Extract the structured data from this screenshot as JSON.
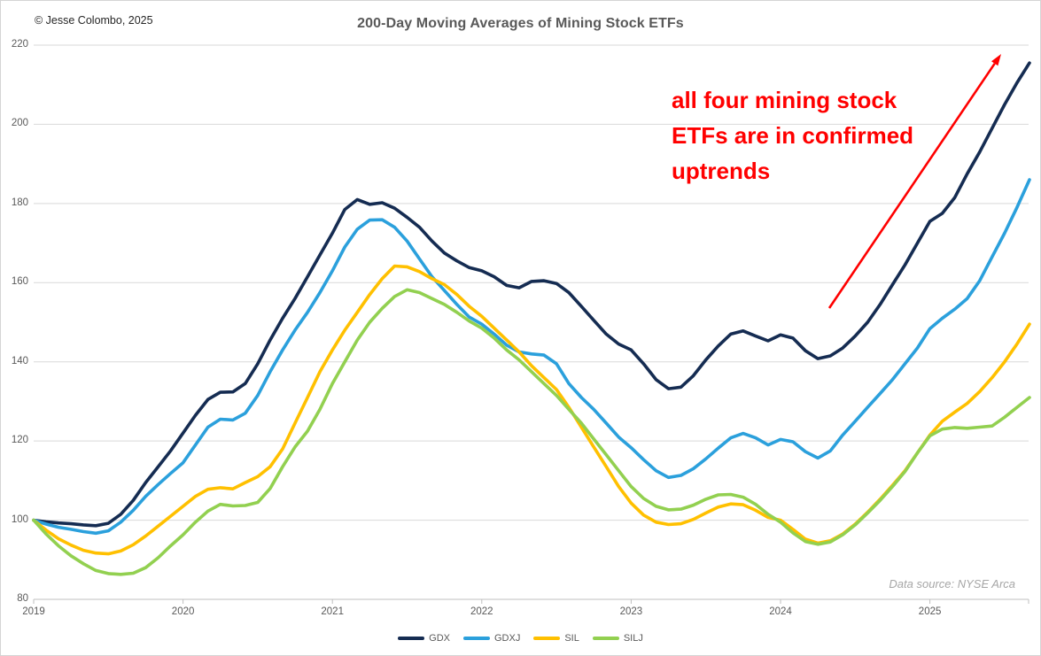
{
  "header": {
    "copyright": "© Jesse Colombo, 2025",
    "title": "200-Day Moving Averages of Mining Stock ETFs"
  },
  "annotation": {
    "lines": [
      "all four mining stock",
      "ETFs are in confirmed",
      "uptrends"
    ],
    "color": "#ff0000"
  },
  "footnote": {
    "text": "Data source: NYSE Arca"
  },
  "chart_data": {
    "type": "line",
    "title": "200-Day Moving Averages of Mining Stock ETFs",
    "xlim": [
      2019,
      2025.75
    ],
    "ylim": [
      80,
      220
    ],
    "x_axis_ticks": [
      2019,
      2020,
      2021,
      2022,
      2023,
      2024,
      2025
    ],
    "y_axis_ticks": [
      80,
      100,
      120,
      140,
      160,
      180,
      200,
      220
    ],
    "grid": "horizontal",
    "legend_position": "bottom-center",
    "x_start_year": 2019,
    "x_step_years": 0.0833333,
    "series": [
      {
        "name": "GDX",
        "color": "#152c52",
        "values": [
          100,
          99.6,
          99.3,
          99.1,
          98.8,
          98.6,
          99.2,
          101.5,
          105,
          109.5,
          113.5,
          117.5,
          122,
          126.5,
          130.5,
          132.3,
          132.4,
          134.5,
          139.5,
          145.5,
          151,
          156,
          161.5,
          167,
          172.5,
          178.5,
          181,
          179.8,
          180.2,
          178.8,
          176.5,
          174,
          170.5,
          167.5,
          165.5,
          163.8,
          163,
          161.5,
          159.3,
          158.7,
          160.3,
          160.5,
          159.8,
          157.5,
          154,
          150.5,
          147,
          144.5,
          143,
          139.5,
          135.5,
          133.2,
          133.6,
          136.5,
          140.5,
          144,
          147,
          147.8,
          146.5,
          145.3,
          146.8,
          146,
          142.8,
          140.8,
          141.5,
          143.5,
          146.5,
          150,
          154.5,
          159.5,
          164.5,
          170,
          175.5,
          177.5,
          181.5,
          187.5,
          193,
          199,
          205,
          210.5,
          215.5
        ]
      },
      {
        "name": "GDXJ",
        "color": "#2ba0dc",
        "values": [
          100,
          99,
          98.2,
          97.7,
          97.1,
          96.7,
          97.3,
          99.5,
          102.5,
          106,
          109,
          111.8,
          114.5,
          119,
          123.5,
          125.5,
          125.3,
          127,
          131.5,
          137.5,
          143,
          148,
          152.5,
          157.5,
          163,
          169,
          173.5,
          175.8,
          175.9,
          174,
          170.5,
          166,
          161.5,
          158,
          154.5,
          151.3,
          149.5,
          147,
          144.2,
          142.5,
          142,
          141.7,
          139.5,
          134.5,
          131,
          128,
          124.5,
          121,
          118.3,
          115.3,
          112.5,
          110.8,
          111.3,
          113,
          115.5,
          118.2,
          120.8,
          121.9,
          120.8,
          119,
          120.4,
          119.8,
          117.3,
          115.7,
          117.5,
          121.5,
          125,
          128.5,
          132,
          135.5,
          139.5,
          143.5,
          148.4,
          151,
          153.3,
          156,
          160.5,
          166.5,
          172.5,
          179,
          186
        ]
      },
      {
        "name": "SIL",
        "color": "#ffc000",
        "values": [
          100,
          97.5,
          95.3,
          93.7,
          92.4,
          91.7,
          91.5,
          92.2,
          93.8,
          96,
          98.5,
          101,
          103.5,
          106,
          107.8,
          108.2,
          107.9,
          109.5,
          111,
          113.5,
          118,
          124.5,
          131,
          137.5,
          143,
          148,
          152.5,
          157,
          161,
          164.2,
          164,
          162.8,
          161,
          159.5,
          157,
          154,
          151.5,
          148.5,
          145.5,
          142.5,
          139,
          136,
          133,
          128.5,
          123.5,
          118.5,
          113.5,
          108.5,
          104.3,
          101.3,
          99.5,
          98.9,
          99.1,
          100.2,
          101.8,
          103.3,
          104.1,
          103.9,
          102.5,
          100.7,
          100,
          97.7,
          95.2,
          94.2,
          94.8,
          96.5,
          99,
          102,
          105.3,
          108.8,
          112.5,
          117,
          121.5,
          125,
          127.3,
          129.5,
          132.5,
          136,
          140,
          144.5,
          149.5
        ]
      },
      {
        "name": "SILJ",
        "color": "#92d050",
        "values": [
          100,
          96.5,
          93.5,
          91,
          89,
          87.3,
          86.5,
          86.3,
          86.6,
          88,
          90.5,
          93.5,
          96.3,
          99.5,
          102.3,
          104,
          103.6,
          103.7,
          104.5,
          108,
          113.5,
          118.5,
          122.5,
          128,
          134.5,
          140,
          145.5,
          150,
          153.5,
          156.5,
          158.2,
          157.5,
          156,
          154.5,
          152.5,
          150.3,
          148.5,
          146,
          143,
          140.5,
          137.5,
          134.5,
          131.5,
          128,
          124.5,
          120.5,
          116.5,
          112.5,
          108.5,
          105.5,
          103.5,
          102.6,
          102.8,
          103.8,
          105.3,
          106.4,
          106.5,
          105.8,
          104,
          101.5,
          99.5,
          96.8,
          94.6,
          93.9,
          94.5,
          96.3,
          98.8,
          101.8,
          105,
          108.5,
          112.3,
          117,
          121.3,
          123,
          123.4,
          123.2,
          123.5,
          123.8,
          126,
          128.5,
          131
        ]
      }
    ]
  }
}
